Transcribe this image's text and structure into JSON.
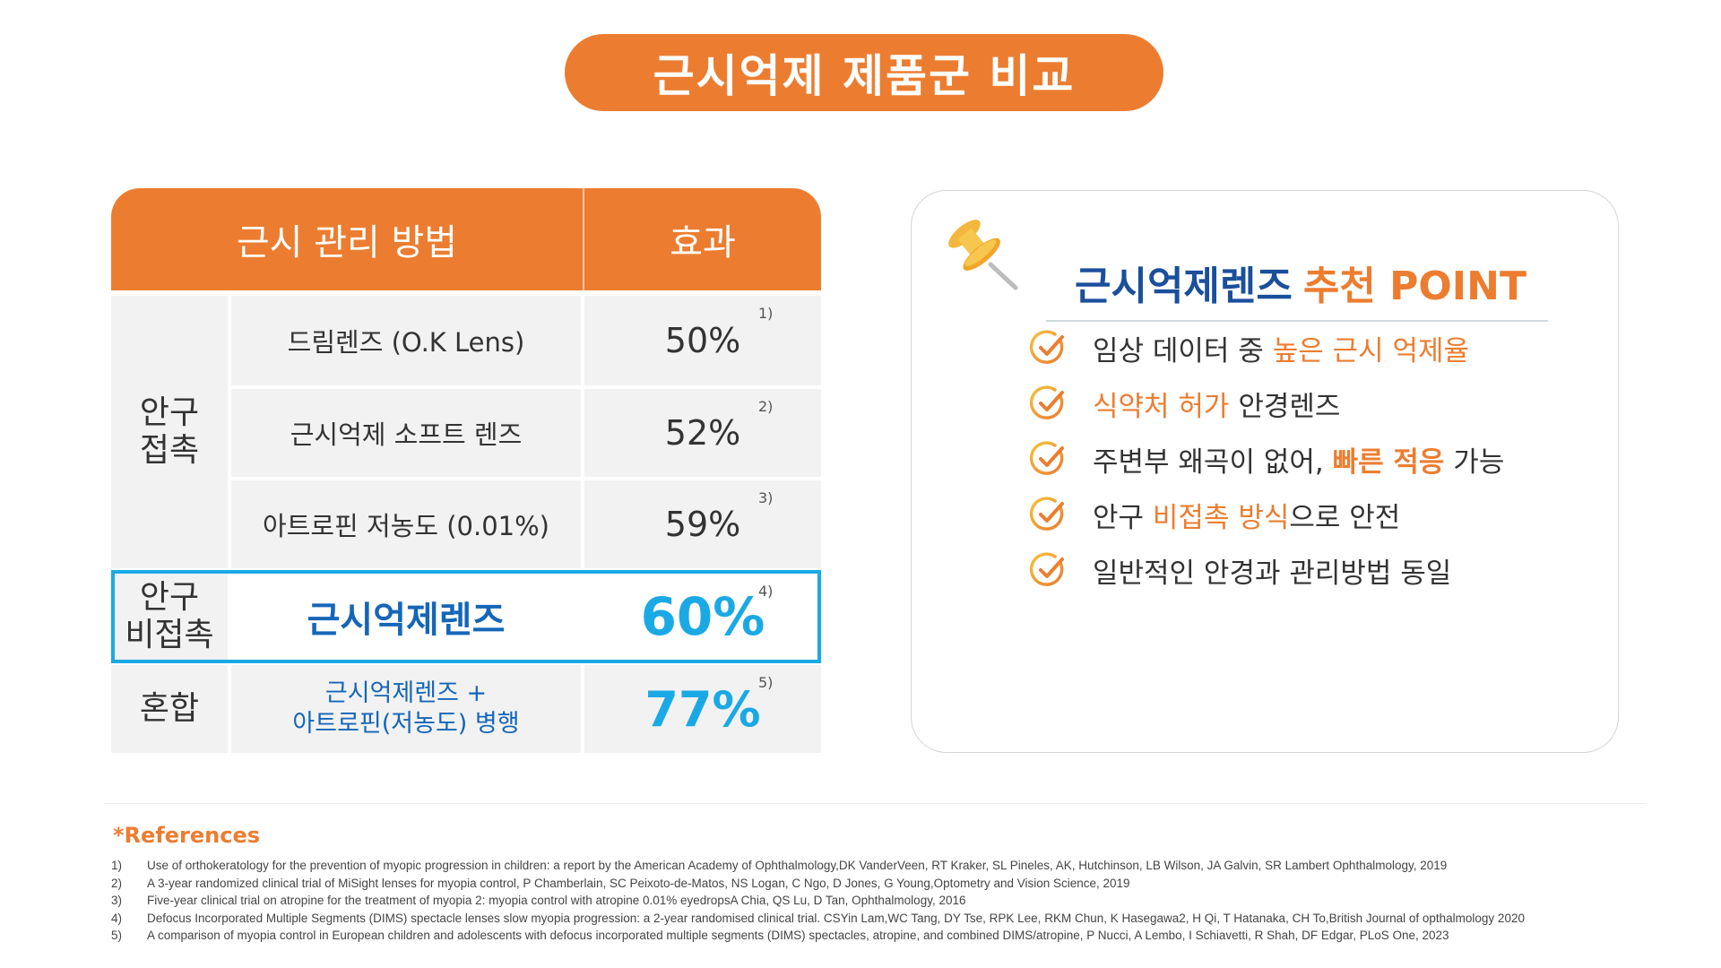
{
  "title": "근시억제 제품군 비교",
  "table": {
    "header_method": "근시 관리 방법",
    "header_effect": "효과",
    "group_contact": "안구\n접촉",
    "group_noncontact": "안구\n비접촉",
    "group_mixed": "혼합",
    "rows": [
      {
        "method": "드림렌즈 (O.K Lens)",
        "effect": "50%",
        "ref": "1)"
      },
      {
        "method": "근시억제 소프트 렌즈",
        "effect": "52%",
        "ref": "2)"
      },
      {
        "method": "아트로핀 저농도 (0.01%)",
        "effect": "59%",
        "ref": "3)"
      },
      {
        "method": "근시억제렌즈",
        "effect": "60%",
        "ref": "4)"
      },
      {
        "method": "근시억제렌즈 +\n아트로핀(저농도) 병행",
        "effect": "77%",
        "ref": "5)"
      }
    ],
    "highlight_color": "#1ba9e6"
  },
  "point_card": {
    "title_blue": "근시억제렌즈",
    "title_orange": "추천 POINT",
    "icon": "pushpin-icon",
    "points": [
      {
        "before": "임상 데이터 중 ",
        "hl": "높은 근시 억제율",
        "after": ""
      },
      {
        "before": "",
        "hl": "식약처 허가",
        "after": " 안경렌즈"
      },
      {
        "before": "주변부 왜곡이 없어, ",
        "hl": "빠른 적응",
        "after": " 가능"
      },
      {
        "before": "안구 ",
        "hl": "비접촉 방식",
        "after": "으로 안전"
      },
      {
        "before": "일반적인 안경과 관리방법 동일",
        "hl": "",
        "after": ""
      }
    ]
  },
  "references": {
    "title": "*References",
    "items": [
      {
        "num": "1)",
        "text": "Use of orthokeratology for the prevention of myopic progression in children: a report by the American Academy of Ophthalmology,DK VanderVeen, RT Kraker, SL Pineles, AK, Hutchinson, LB Wilson, JA Galvin, SR Lambert Ophthalmology, 2019"
      },
      {
        "num": "2)",
        "text": "A 3-year randomized clinical trial of MiSight lenses for myopia control, P Chamberlain, SC Peixoto-de-Matos, NS Logan, C Ngo, D Jones, G Young,Optometry and Vision Science, 2019"
      },
      {
        "num": "3)",
        "text": "Five-year clinical trial on atropine for the treatment of myopia 2: myopia control with atropine 0.01% eyedropsA Chia, QS Lu, D Tan, Ophthalmology, 2016"
      },
      {
        "num": "4)",
        "text": "Defocus Incorporated Multiple Segments (DIMS) spectacle lenses slow myopia progression: a 2-year randomised clinical trial. CSYin Lam,WC Tang, DY Tse, RPK Lee, RKM Chun, K Hasegawa2, H Qi, T Hatanaka, CH To,British Journal of opthalmology 2020"
      },
      {
        "num": "5)",
        "text": "A comparison of myopia control in European children and adolescents with defocus incorporated multiple segments (DIMS) spectacles, atropine, and combined DIMS/atropine, P Nucci, A Lembo, I Schiavetti, R Shah, DF Edgar, PLoS One, 2023"
      }
    ]
  },
  "colors": {
    "orange": "#ec7d30",
    "blue": "#1566b8",
    "cyan": "#1ba9e6",
    "navy": "#1a4f9c",
    "cell": "#f2f2f2"
  }
}
